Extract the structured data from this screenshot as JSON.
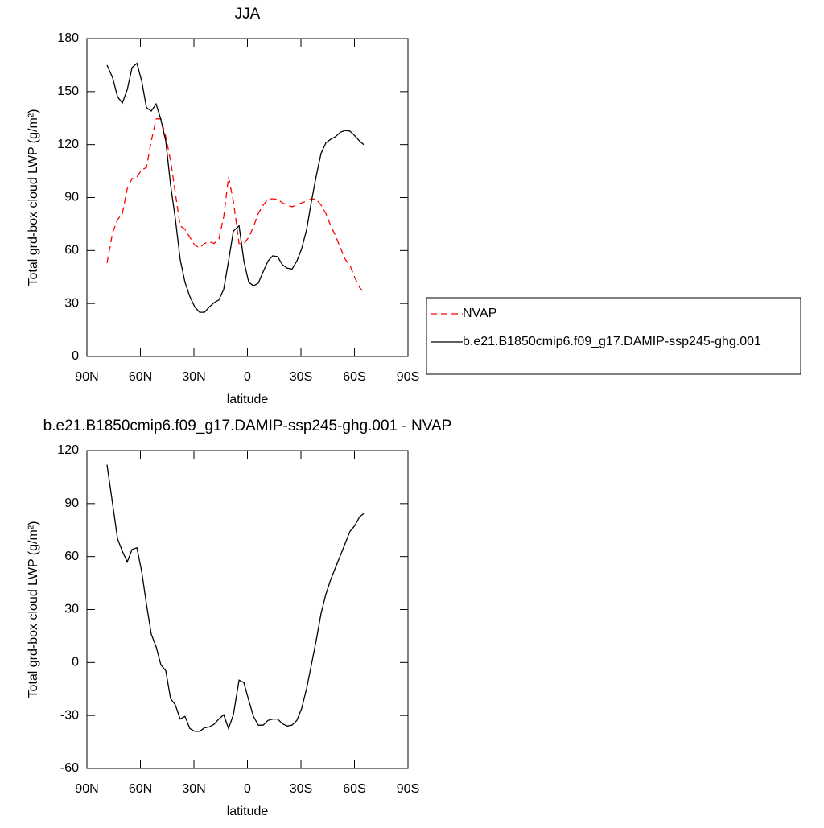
{
  "chart_data": [
    {
      "type": "line",
      "title": "JJA",
      "xlabel": "latitude",
      "ylabel": "Total grd-box cloud LWP (g/m²)",
      "xlim": [
        90,
        -90
      ],
      "xticks": [
        {
          "value": 90,
          "label": "90N"
        },
        {
          "value": 60,
          "label": "60N"
        },
        {
          "value": 30,
          "label": "30N"
        },
        0,
        {
          "value": -30,
          "label": "30S"
        },
        {
          "value": -60,
          "label": "60S"
        },
        {
          "value": -90,
          "label": "90S"
        }
      ],
      "ylim": [
        0,
        180
      ],
      "yticks": [
        0,
        30,
        60,
        90,
        120,
        150,
        180
      ],
      "legend": "outside-right",
      "x": [
        78.7,
        75.6,
        72.8,
        70.1,
        67.4,
        64.7,
        62.0,
        59.3,
        56.6,
        53.9,
        51.2,
        48.5,
        45.8,
        43.1,
        40.4,
        37.7,
        35.0,
        32.3,
        29.5,
        26.8,
        24.1,
        21.4,
        18.7,
        16.0,
        13.3,
        10.6,
        7.9,
        4.7,
        2.0,
        -0.7,
        -3.4,
        -6.1,
        -8.8,
        -11.5,
        -14.2,
        -16.9,
        -19.6,
        -22.3,
        -25.0,
        -27.7,
        -30.4,
        -33.2,
        -35.9,
        -38.6,
        -41.3,
        -44.0,
        -46.7,
        -49.4,
        -52.1,
        -54.8,
        -57.5,
        -60.2,
        -62.9,
        -65.2
      ],
      "series": [
        {
          "name": "NVAP",
          "color": "#ff0000",
          "linestyle": "dashed",
          "values": [
            53,
            70,
            77.5,
            81,
            95,
            100.7,
            101.6,
            105.7,
            107,
            122,
            134.5,
            134.5,
            124.4,
            110.8,
            92.5,
            74,
            72,
            67.5,
            63,
            61.5,
            64,
            65,
            64,
            66.5,
            79,
            101.6,
            88,
            64,
            63.8,
            67.5,
            73.4,
            81,
            85.7,
            89,
            89.3,
            89,
            87,
            85.7,
            84.8,
            85.7,
            87,
            88,
            89.3,
            89,
            85.7,
            81,
            74,
            68.4,
            61.5,
            55,
            51.5,
            44.7,
            39,
            36.5
          ]
        },
        {
          "name": "b.e21.B1850cmip6.f09_g17.DAMIP-ssp245-ghg.001",
          "color": "#000000",
          "linestyle": "solid",
          "values": [
            165,
            158,
            147,
            143.6,
            151,
            163.6,
            166,
            156,
            141,
            139,
            143,
            134,
            122,
            97,
            78,
            55,
            42,
            34,
            28,
            25,
            25,
            28,
            30.5,
            32,
            38,
            54,
            71,
            74,
            54,
            42,
            40,
            41.5,
            48,
            54,
            57,
            56.5,
            52,
            50,
            49.5,
            54,
            61,
            72,
            88,
            102.5,
            115,
            121,
            123,
            124.5,
            127,
            128,
            127.6,
            125,
            122,
            120
          ]
        }
      ]
    },
    {
      "type": "line",
      "title": "b.e21.B1850cmip6.f09_g17.DAMIP-ssp245-ghg.001 - NVAP",
      "xlabel": "latitude",
      "ylabel": "Total grd-box cloud LWP (g/m²)",
      "xlim": [
        90,
        -90
      ],
      "xticks": [
        {
          "value": 90,
          "label": "90N"
        },
        {
          "value": 60,
          "label": "60N"
        },
        {
          "value": 30,
          "label": "30N"
        },
        0,
        {
          "value": -30,
          "label": "30S"
        },
        {
          "value": -60,
          "label": "60S"
        },
        {
          "value": -90,
          "label": "90S"
        }
      ],
      "ylim": [
        -60,
        120
      ],
      "yticks": [
        -60,
        -30,
        0,
        30,
        60,
        90,
        120
      ],
      "x": [
        78.7,
        75.6,
        72.8,
        70.1,
        67.4,
        64.7,
        62.0,
        59.3,
        56.6,
        53.9,
        51.2,
        48.5,
        45.8,
        43.1,
        40.4,
        37.7,
        35.0,
        32.3,
        29.5,
        26.8,
        24.1,
        21.4,
        18.7,
        16.0,
        13.3,
        10.6,
        7.9,
        4.7,
        2.0,
        -0.7,
        -3.4,
        -6.1,
        -8.8,
        -11.5,
        -14.2,
        -16.9,
        -19.6,
        -22.3,
        -25.0,
        -27.7,
        -30.4,
        -33.2,
        -35.9,
        -38.6,
        -41.3,
        -44.0,
        -46.7,
        -49.4,
        -52.1,
        -54.8,
        -57.5,
        -60.2,
        -62.9,
        -65.2
      ],
      "series": [
        {
          "color": "#000000",
          "linestyle": "solid",
          "values": [
            112,
            90,
            70,
            63,
            57,
            64,
            65,
            51.5,
            33,
            16,
            9,
            -1.4,
            -4.6,
            -20.5,
            -24,
            -32,
            -30.5,
            -37.4,
            -39,
            -39,
            -37,
            -36.5,
            -35,
            -32,
            -29.6,
            -37.4,
            -29.6,
            -10,
            -11.4,
            -21.4,
            -30.5,
            -35.5,
            -35.5,
            -32.8,
            -32,
            -32,
            -34.6,
            -36,
            -35.5,
            -32.8,
            -26,
            -14.6,
            -1,
            12.8,
            27.8,
            38.7,
            47,
            53.8,
            60.6,
            67.5,
            74.3,
            77.5,
            82.5,
            84.3
          ]
        }
      ]
    }
  ]
}
